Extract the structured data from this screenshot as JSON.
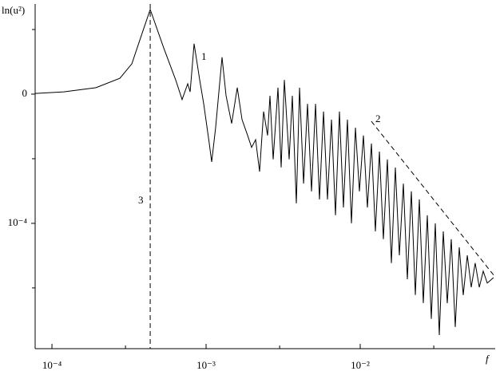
{
  "chart_data": {
    "type": "line",
    "ylabel": "ln(u²)",
    "xlabel": "f",
    "xscale": "log",
    "xlim": [
      7.78e-05,
      0.0751
    ],
    "ylim": [
      -7.88,
      2.79
    ],
    "xticks": [
      {
        "value": 0.0001,
        "label": "10⁻⁴"
      },
      {
        "value": 0.001,
        "label": "10⁻³"
      },
      {
        "value": 0.01,
        "label": "10⁻²"
      }
    ],
    "xminor_ticks": [
      0.0003,
      0.003,
      0.03
    ],
    "yticks": [
      0,
      {
        "value": -4,
        "label": "10⁻⁴"
      }
    ],
    "yminor_ticks": [
      2,
      -2,
      -6
    ],
    "x": [
      7.78e-05,
      0.0001196,
      0.000193,
      0.000276,
      0.00033,
      0.000372,
      0.000434,
      0.000531,
      0.000635,
      0.000699,
      0.00076,
      0.000788,
      0.000836,
      0.000909,
      0.000965,
      0.001049,
      0.001087,
      0.001153,
      0.001269,
      0.001348,
      0.001465,
      0.001593,
      0.001711,
      0.00186,
      0.001974,
      0.002096,
      0.002224,
      0.002361,
      0.002506,
      0.002597,
      0.002724,
      0.002927,
      0.003069,
      0.003219,
      0.003458,
      0.003627,
      0.00385,
      0.00404,
      0.00429,
      0.00455,
      0.00483,
      0.00513,
      0.00544,
      0.00578,
      0.00613,
      0.00651,
      0.00691,
      0.00733,
      0.00778,
      0.00826,
      0.00877,
      0.00931,
      0.00988,
      0.01049,
      0.01113,
      0.01182,
      0.01254,
      0.01332,
      0.01413,
      0.015,
      0.01593,
      0.0169,
      0.01794,
      0.01905,
      0.02022,
      0.02146,
      0.02278,
      0.02418,
      0.02566,
      0.02724,
      0.02891,
      0.03069,
      0.03258,
      0.03458,
      0.0367,
      0.03896,
      0.04135,
      0.0439,
      0.0466,
      0.0495,
      0.0525,
      0.0557,
      0.0592,
      0.0628,
      0.0667,
      0.0733
    ],
    "series": [
      {
        "color": "#000000",
        "values": [
          0.02,
          0.07,
          0.2,
          0.49,
          0.94,
          1.68,
          2.62,
          1.43,
          0.44,
          -0.17,
          0.32,
          0.07,
          1.56,
          0.44,
          -0.3,
          -1.53,
          -2.1,
          -1.04,
          1.14,
          -0.05,
          -0.91,
          0.2,
          -0.79,
          -1.28,
          -1.65,
          -1.41,
          -2.4,
          -0.54,
          -1.28,
          -0.05,
          -2.02,
          0.2,
          -2.27,
          0.44,
          -2.02,
          -0.05,
          -3.38,
          0.2,
          -2.77,
          -0.3,
          -3.01,
          -0.3,
          -3.26,
          -0.54,
          -3.26,
          -0.79,
          -3.75,
          -0.54,
          -3.51,
          -0.79,
          -4.0,
          -1.04,
          -3.01,
          -1.28,
          -3.51,
          -1.53,
          -4.25,
          -1.78,
          -4.49,
          -2.02,
          -5.23,
          -2.27,
          -4.99,
          -2.77,
          -5.73,
          -3.01,
          -6.22,
          -3.26,
          -6.47,
          -3.75,
          -6.96,
          -4.0,
          -7.46,
          -4.25,
          -6.47,
          -4.49,
          -7.21,
          -4.74,
          -6.22,
          -4.99,
          -5.98,
          -5.23,
          -5.98,
          -5.48,
          -5.85,
          -5.68
        ]
      }
    ],
    "reference_line": {
      "label": "2",
      "x": [
        0.0118,
        0.0733
      ],
      "y": [
        -0.84,
        -5.6
      ]
    },
    "vline": {
      "label": "3",
      "x": 0.000434
    },
    "annotation": "1"
  }
}
